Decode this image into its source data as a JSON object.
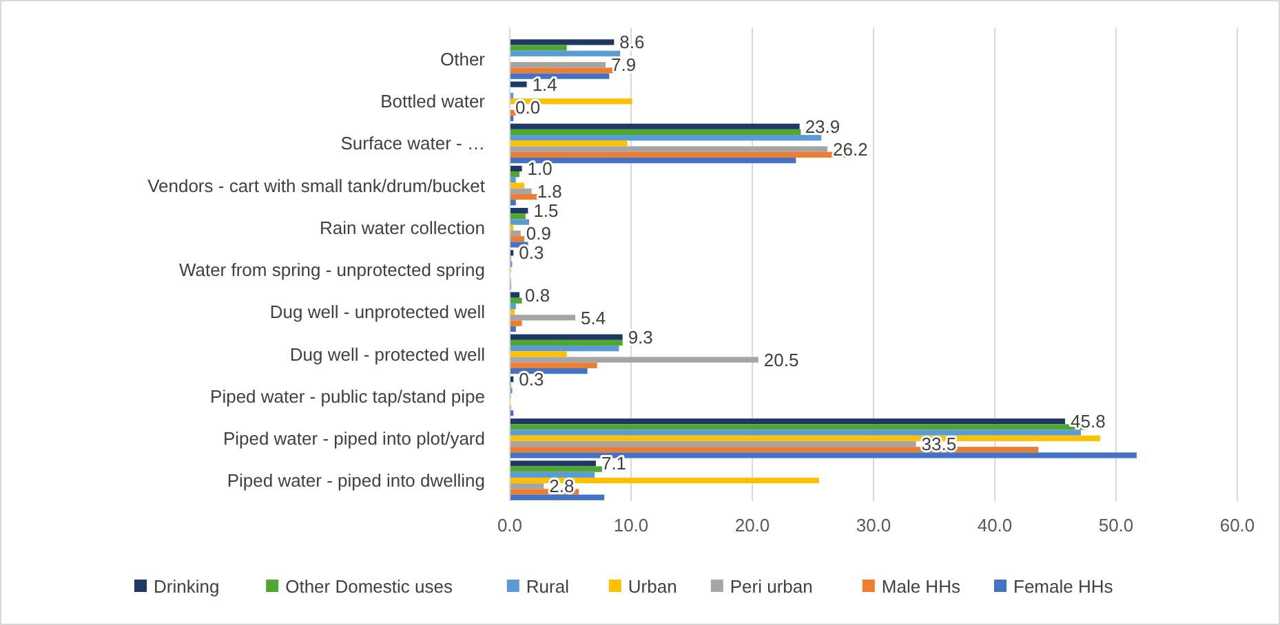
{
  "chart_data": {
    "type": "bar",
    "orientation": "horizontal",
    "categories": [
      "Other",
      "Bottled water",
      "Surface water - …",
      "Vendors - cart with small tank/drum/bucket",
      "Rain water collection",
      "Water from spring - unprotected spring",
      "Dug well - unprotected well",
      "Dug well - protected well",
      "Piped  water - public tap/stand pipe",
      "Piped  water - piped into plot/yard",
      "Piped  water - piped into dwelling"
    ],
    "series": [
      {
        "name": "Drinking",
        "color": "#1f3864",
        "values": [
          8.6,
          1.4,
          23.9,
          1.0,
          1.5,
          0.3,
          0.8,
          9.3,
          0.3,
          45.8,
          7.1
        ],
        "value_labels": [
          "8.6",
          "1.4",
          "23.9",
          "1.0",
          "1.5",
          "0.3",
          "0.8",
          "9.3",
          "0.3",
          "45.8",
          "7.1"
        ]
      },
      {
        "name": "Other Domestic uses",
        "color": "#4ea72e",
        "values": [
          4.7,
          0,
          24,
          0.8,
          1.3,
          0.1,
          1.0,
          9.3,
          0.1,
          47.5,
          7.6
        ]
      },
      {
        "name": "Rural",
        "color": "#5b9bd5",
        "values": [
          9.1,
          0.3,
          25.7,
          0.5,
          1.6,
          0.2,
          0.5,
          9.0,
          0.2,
          47.1,
          7.0
        ]
      },
      {
        "name": "Urban",
        "color": "#ffc000",
        "values": [
          0,
          10.1,
          9.7,
          1.2,
          0.3,
          0.1,
          0.4,
          4.7,
          0.1,
          48.7,
          25.5
        ]
      },
      {
        "name": "Peri urban",
        "color": "#a5a5a5",
        "values": [
          7.9,
          0.0,
          26.2,
          1.8,
          0.9,
          0,
          5.4,
          20.5,
          0,
          33.5,
          2.8
        ],
        "value_labels": [
          "7.9",
          "0.0",
          "26.2",
          "1.8",
          "0.9",
          null,
          "5.4",
          "20.5",
          null,
          "33.5",
          "2.8"
        ]
      },
      {
        "name": "Male HHs",
        "color": "#ed7d31",
        "values": [
          8.5,
          0.5,
          27.9,
          2.5,
          1.2,
          0.1,
          1.0,
          7.2,
          0.1,
          43.6,
          5.7
        ]
      },
      {
        "name": "Female HHs",
        "color": "#4472c4",
        "values": [
          8.2,
          0.3,
          23.6,
          0.5,
          1.5,
          0.1,
          0.5,
          6.4,
          0.3,
          51.7,
          7.8
        ]
      }
    ],
    "xlim": [
      0,
      60
    ],
    "xticks": [
      {
        "value": 0,
        "label": "0.0"
      },
      {
        "value": 10,
        "label": "10.0"
      },
      {
        "value": 20,
        "label": "20.0"
      },
      {
        "value": 30,
        "label": "30.0"
      },
      {
        "value": 40,
        "label": "40.0"
      },
      {
        "value": 50,
        "label": "50.0"
      },
      {
        "value": 60,
        "label": "60.0"
      }
    ],
    "grid": "x",
    "legend": "bottom"
  }
}
